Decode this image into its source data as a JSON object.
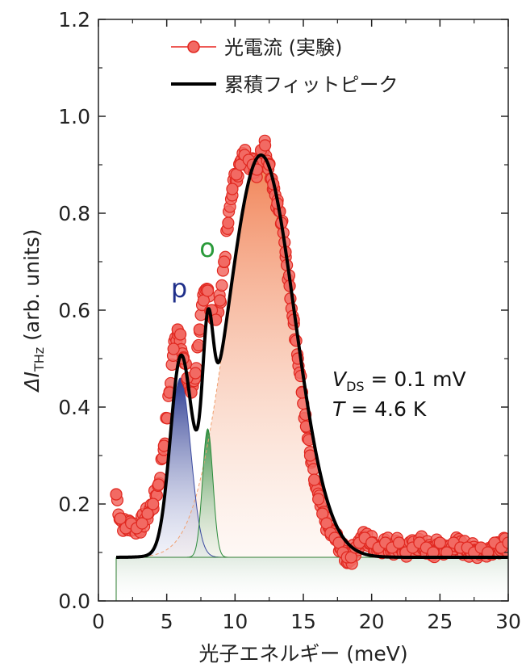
{
  "chart_data": {
    "type": "line",
    "xlabel": "光子エネルギー (meV)",
    "ylabel": {
      "prefix": "ΔI",
      "subscript": "THz",
      "suffix": " (arb. units)"
    },
    "xlim": [
      0,
      30
    ],
    "ylim": [
      0,
      1.2
    ],
    "xticks": [
      "0",
      "5",
      "10",
      "15",
      "20",
      "25",
      "30"
    ],
    "yticks": [
      "0.0",
      "0.2",
      "0.4",
      "0.6",
      "0.8",
      "1.0",
      "1.2"
    ],
    "legend": {
      "placement": "top-center",
      "entries": [
        "光電流 (実験)",
        "累積フィットピーク"
      ]
    },
    "annotations": {
      "vds_label": "V",
      "vds_sub": "DS",
      "vds_value": " = 0.1 mV",
      "t_label": "T",
      "t_value": " = 4.6 K",
      "peak_p": "p",
      "peak_o": "o"
    },
    "colors": {
      "experiment": "#e8231f",
      "fit": "#000000",
      "peak_p": "#1f2f8a",
      "peak_o": "#2a9a3a",
      "peak_main": "#f08050",
      "baseline": "#2e7d32"
    },
    "baseline": 0.09,
    "fit_peaks": [
      {
        "name": "p",
        "center": 6.0,
        "amplitude": 0.37,
        "sigma": 0.75
      },
      {
        "name": "o",
        "center": 8.0,
        "amplitude": 0.265,
        "sigma": 0.38
      },
      {
        "name": "main",
        "center": 11.9,
        "amplitude": 0.83,
        "sigma": 2.45
      }
    ],
    "series": [
      {
        "name": "光電流 (実験)",
        "x": [
          1.3,
          1.6,
          2.0,
          2.4,
          2.8,
          3.2,
          3.6,
          4.0,
          4.4,
          4.8,
          5.2,
          5.5,
          5.8,
          6.0,
          6.2,
          6.5,
          6.8,
          7.1,
          7.4,
          7.7,
          8.0,
          8.3,
          8.6,
          8.9,
          9.2,
          9.5,
          9.8,
          10.1,
          10.4,
          10.7,
          11.0,
          11.3,
          11.6,
          11.9,
          12.2,
          12.5,
          12.8,
          13.1,
          13.4,
          13.7,
          14.0,
          14.3,
          14.6,
          14.9,
          15.2,
          15.5,
          15.8,
          16.1,
          16.4,
          16.7,
          17.0,
          17.3,
          17.6,
          17.9,
          18.2,
          18.5,
          18.8,
          19.1,
          19.5,
          20.0,
          20.5,
          21.0,
          21.5,
          22.0,
          22.5,
          23.0,
          23.5,
          24.0,
          24.5,
          25.0,
          25.5,
          26.0,
          26.5,
          27.0,
          27.5,
          28.0,
          28.5,
          29.0,
          29.5,
          30.0
        ],
        "y": [
          0.22,
          0.17,
          0.15,
          0.16,
          0.15,
          0.16,
          0.18,
          0.2,
          0.24,
          0.32,
          0.43,
          0.52,
          0.56,
          0.55,
          0.5,
          0.46,
          0.43,
          0.47,
          0.56,
          0.62,
          0.64,
          0.6,
          0.58,
          0.62,
          0.7,
          0.78,
          0.85,
          0.88,
          0.9,
          0.92,
          0.91,
          0.9,
          0.89,
          0.93,
          0.94,
          0.9,
          0.86,
          0.82,
          0.78,
          0.72,
          0.65,
          0.58,
          0.5,
          0.43,
          0.36,
          0.3,
          0.25,
          0.21,
          0.18,
          0.16,
          0.14,
          0.13,
          0.12,
          0.1,
          0.09,
          0.09,
          0.11,
          0.12,
          0.13,
          0.12,
          0.11,
          0.12,
          0.11,
          0.12,
          0.1,
          0.11,
          0.12,
          0.11,
          0.1,
          0.12,
          0.1,
          0.12,
          0.11,
          0.11,
          0.1,
          0.11,
          0.1,
          0.12,
          0.11,
          0.12
        ]
      }
    ]
  }
}
